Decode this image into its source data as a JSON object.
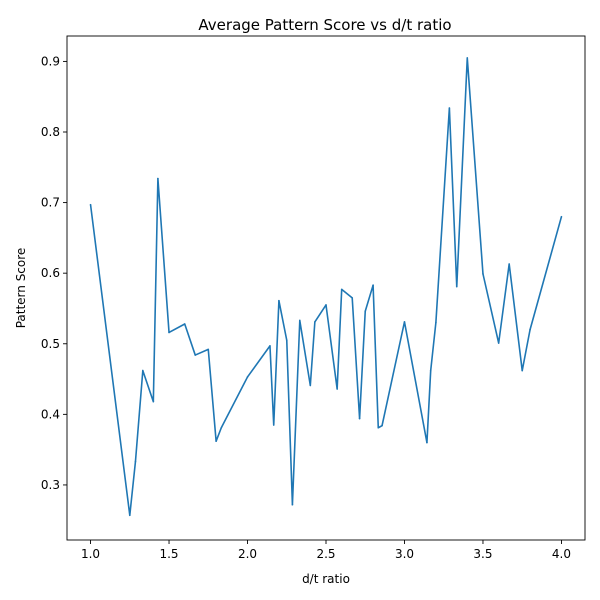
{
  "chart_data": {
    "type": "line",
    "title": "Average Pattern Score vs d/t ratio",
    "xlabel": "d/t ratio",
    "ylabel": "Pattern Score",
    "xlim": [
      0.85,
      4.15
    ],
    "ylim": [
      0.222,
      0.936
    ],
    "xticks": [
      1.0,
      1.5,
      2.0,
      2.5,
      3.0,
      3.5,
      4.0
    ],
    "xtick_labels": [
      "1.0",
      "1.5",
      "2.0",
      "2.5",
      "3.0",
      "3.5",
      "4.0"
    ],
    "yticks": [
      0.3,
      0.4,
      0.5,
      0.6,
      0.7,
      0.8,
      0.9
    ],
    "ytick_labels": [
      "0.3",
      "0.4",
      "0.5",
      "0.6",
      "0.7",
      "0.8",
      "0.9"
    ],
    "grid": false,
    "color": "#1f77b4",
    "series": [
      {
        "x": [
          1.0,
          1.25,
          1.286,
          1.333,
          1.4,
          1.429,
          1.5,
          1.6,
          1.667,
          1.75,
          1.8,
          1.833,
          2.0,
          2.143,
          2.167,
          2.2,
          2.25,
          2.286,
          2.333,
          2.4,
          2.429,
          2.5,
          2.571,
          2.6,
          2.667,
          2.714,
          2.75,
          2.8,
          2.833,
          2.857,
          3.0,
          3.143,
          3.167,
          3.2,
          3.286,
          3.333,
          3.4,
          3.5,
          3.6,
          3.667,
          3.75,
          3.8,
          4.0
        ],
        "y": [
          0.697,
          0.257,
          0.333,
          0.462,
          0.418,
          0.734,
          0.516,
          0.528,
          0.484,
          0.492,
          0.362,
          0.381,
          0.453,
          0.497,
          0.385,
          0.561,
          0.505,
          0.272,
          0.533,
          0.441,
          0.531,
          0.555,
          0.436,
          0.577,
          0.565,
          0.394,
          0.546,
          0.583,
          0.381,
          0.384,
          0.531,
          0.36,
          0.462,
          0.53,
          0.834,
          0.581,
          0.905,
          0.599,
          0.501,
          0.613,
          0.462,
          0.52,
          0.68
        ]
      }
    ]
  }
}
